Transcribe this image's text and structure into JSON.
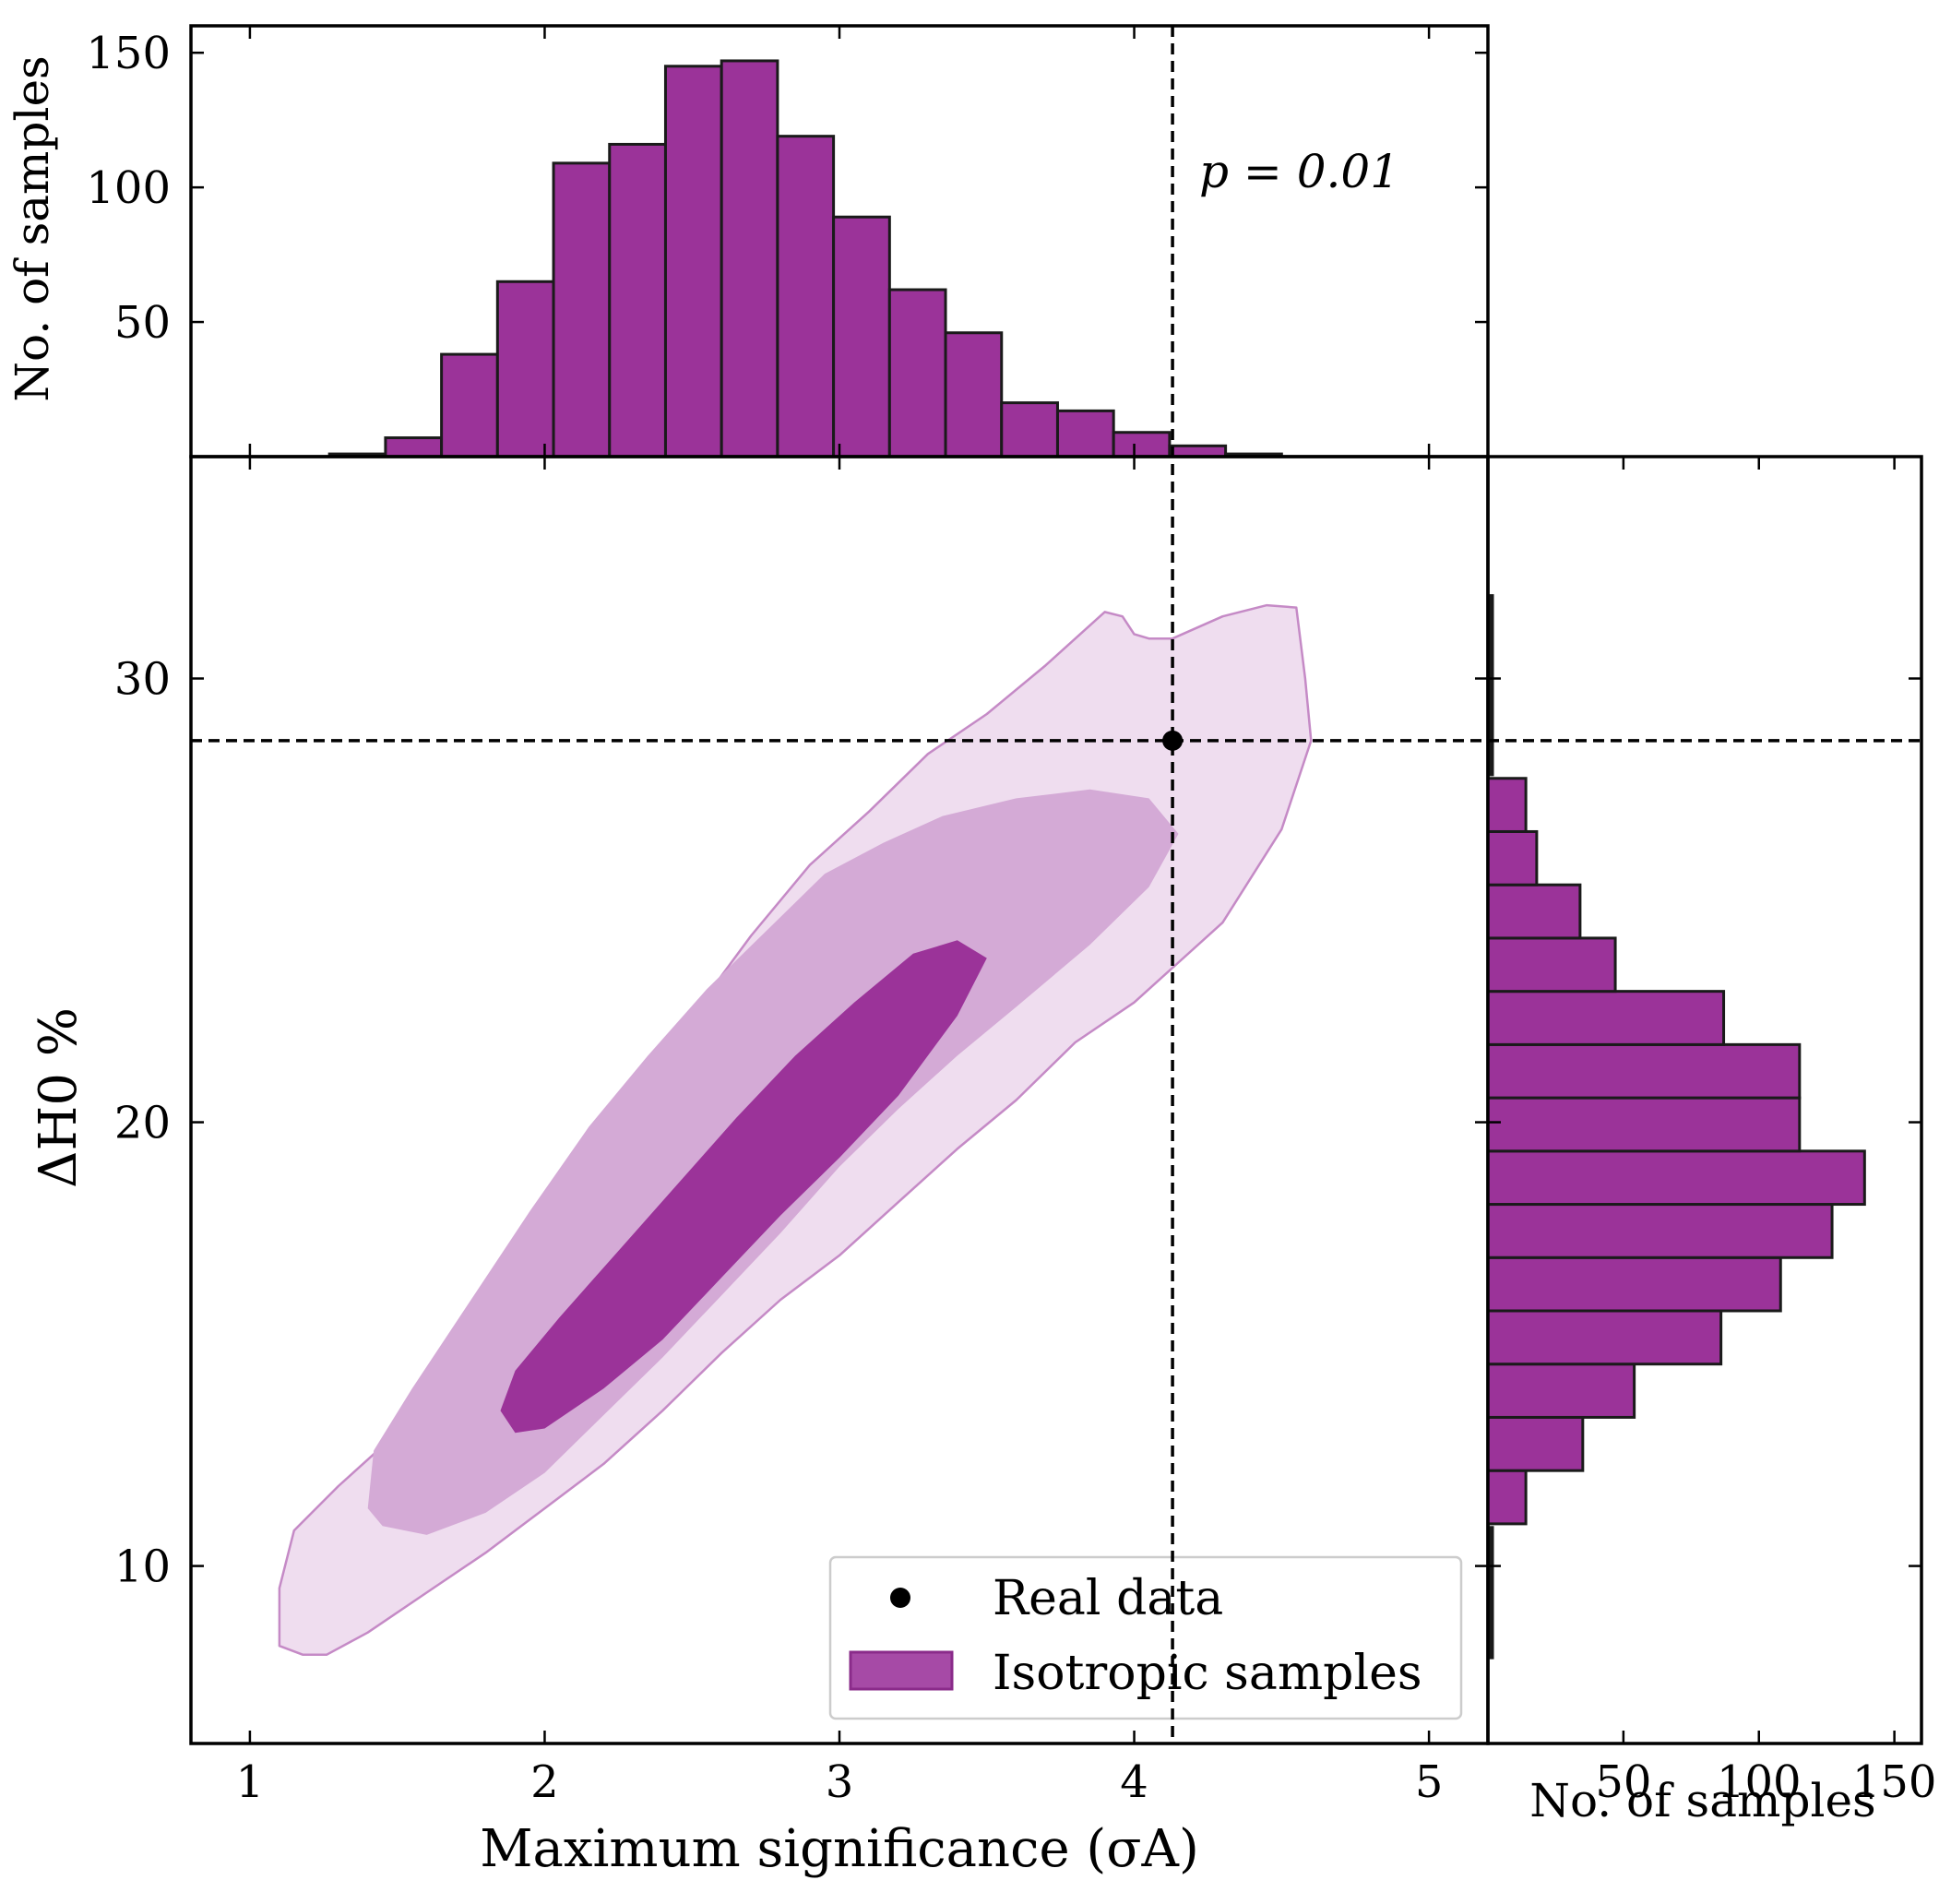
{
  "colors": {
    "bar_fill": "#9b3399",
    "bar_edge": "#1a1a1a",
    "contour_inner": "#9b3399",
    "contour_mid": "#d4aad6",
    "contour_outer": "#efddef",
    "contour_edge": "#c58ac6",
    "marker": "#000000"
  },
  "chart_data": [
    {
      "type": "histogram",
      "panel": "top",
      "ylabel": "No. of samples",
      "xlim": [
        0.8,
        5.2
      ],
      "ylim": [
        0,
        160
      ],
      "yticks": [
        50,
        100,
        150
      ],
      "bin_edges": [
        1.27,
        1.46,
        1.65,
        1.84,
        2.03,
        2.22,
        2.41,
        2.6,
        2.79,
        2.98,
        3.17,
        3.36,
        3.55,
        3.74,
        3.93,
        4.12,
        4.31,
        4.5
      ],
      "counts": [
        1,
        7,
        38,
        65,
        109,
        116,
        145,
        147,
        119,
        89,
        62,
        46,
        20,
        17,
        9,
        4,
        1
      ],
      "annotation": "p = 0.01",
      "vline": 4.13
    },
    {
      "type": "contour",
      "panel": "main",
      "xlabel": "Maximum significance (σA)",
      "ylabel": "ΔH0 %",
      "xlim": [
        0.8,
        5.2
      ],
      "ylim": [
        6,
        35
      ],
      "xticks": [
        1,
        2,
        3,
        4,
        5
      ],
      "yticks": [
        10,
        20,
        30
      ],
      "levels": [
        "inner",
        "mid",
        "outer"
      ],
      "real_data": {
        "x": 4.13,
        "y": 28.6
      },
      "vline": 4.13,
      "hline": 28.6,
      "legend": {
        "position": "lower right",
        "entries": [
          {
            "label": "Real data",
            "kind": "marker"
          },
          {
            "label": "Isotropic samples",
            "kind": "patch"
          }
        ]
      }
    },
    {
      "type": "histogram",
      "panel": "right",
      "orientation": "horizontal",
      "xlabel": "No. of samples",
      "xlim": [
        0,
        160
      ],
      "xticks": [
        50,
        100,
        150
      ],
      "bin_edges": [
        10.95,
        12.15,
        13.35,
        14.55,
        15.75,
        16.95,
        18.15,
        19.35,
        20.55,
        21.75,
        22.95,
        24.15,
        25.35,
        26.55,
        27.75
      ],
      "counts": [
        14,
        35,
        54,
        86,
        108,
        127,
        139,
        115,
        115,
        87,
        47,
        34,
        18,
        14
      ],
      "hline": 28.6
    }
  ]
}
